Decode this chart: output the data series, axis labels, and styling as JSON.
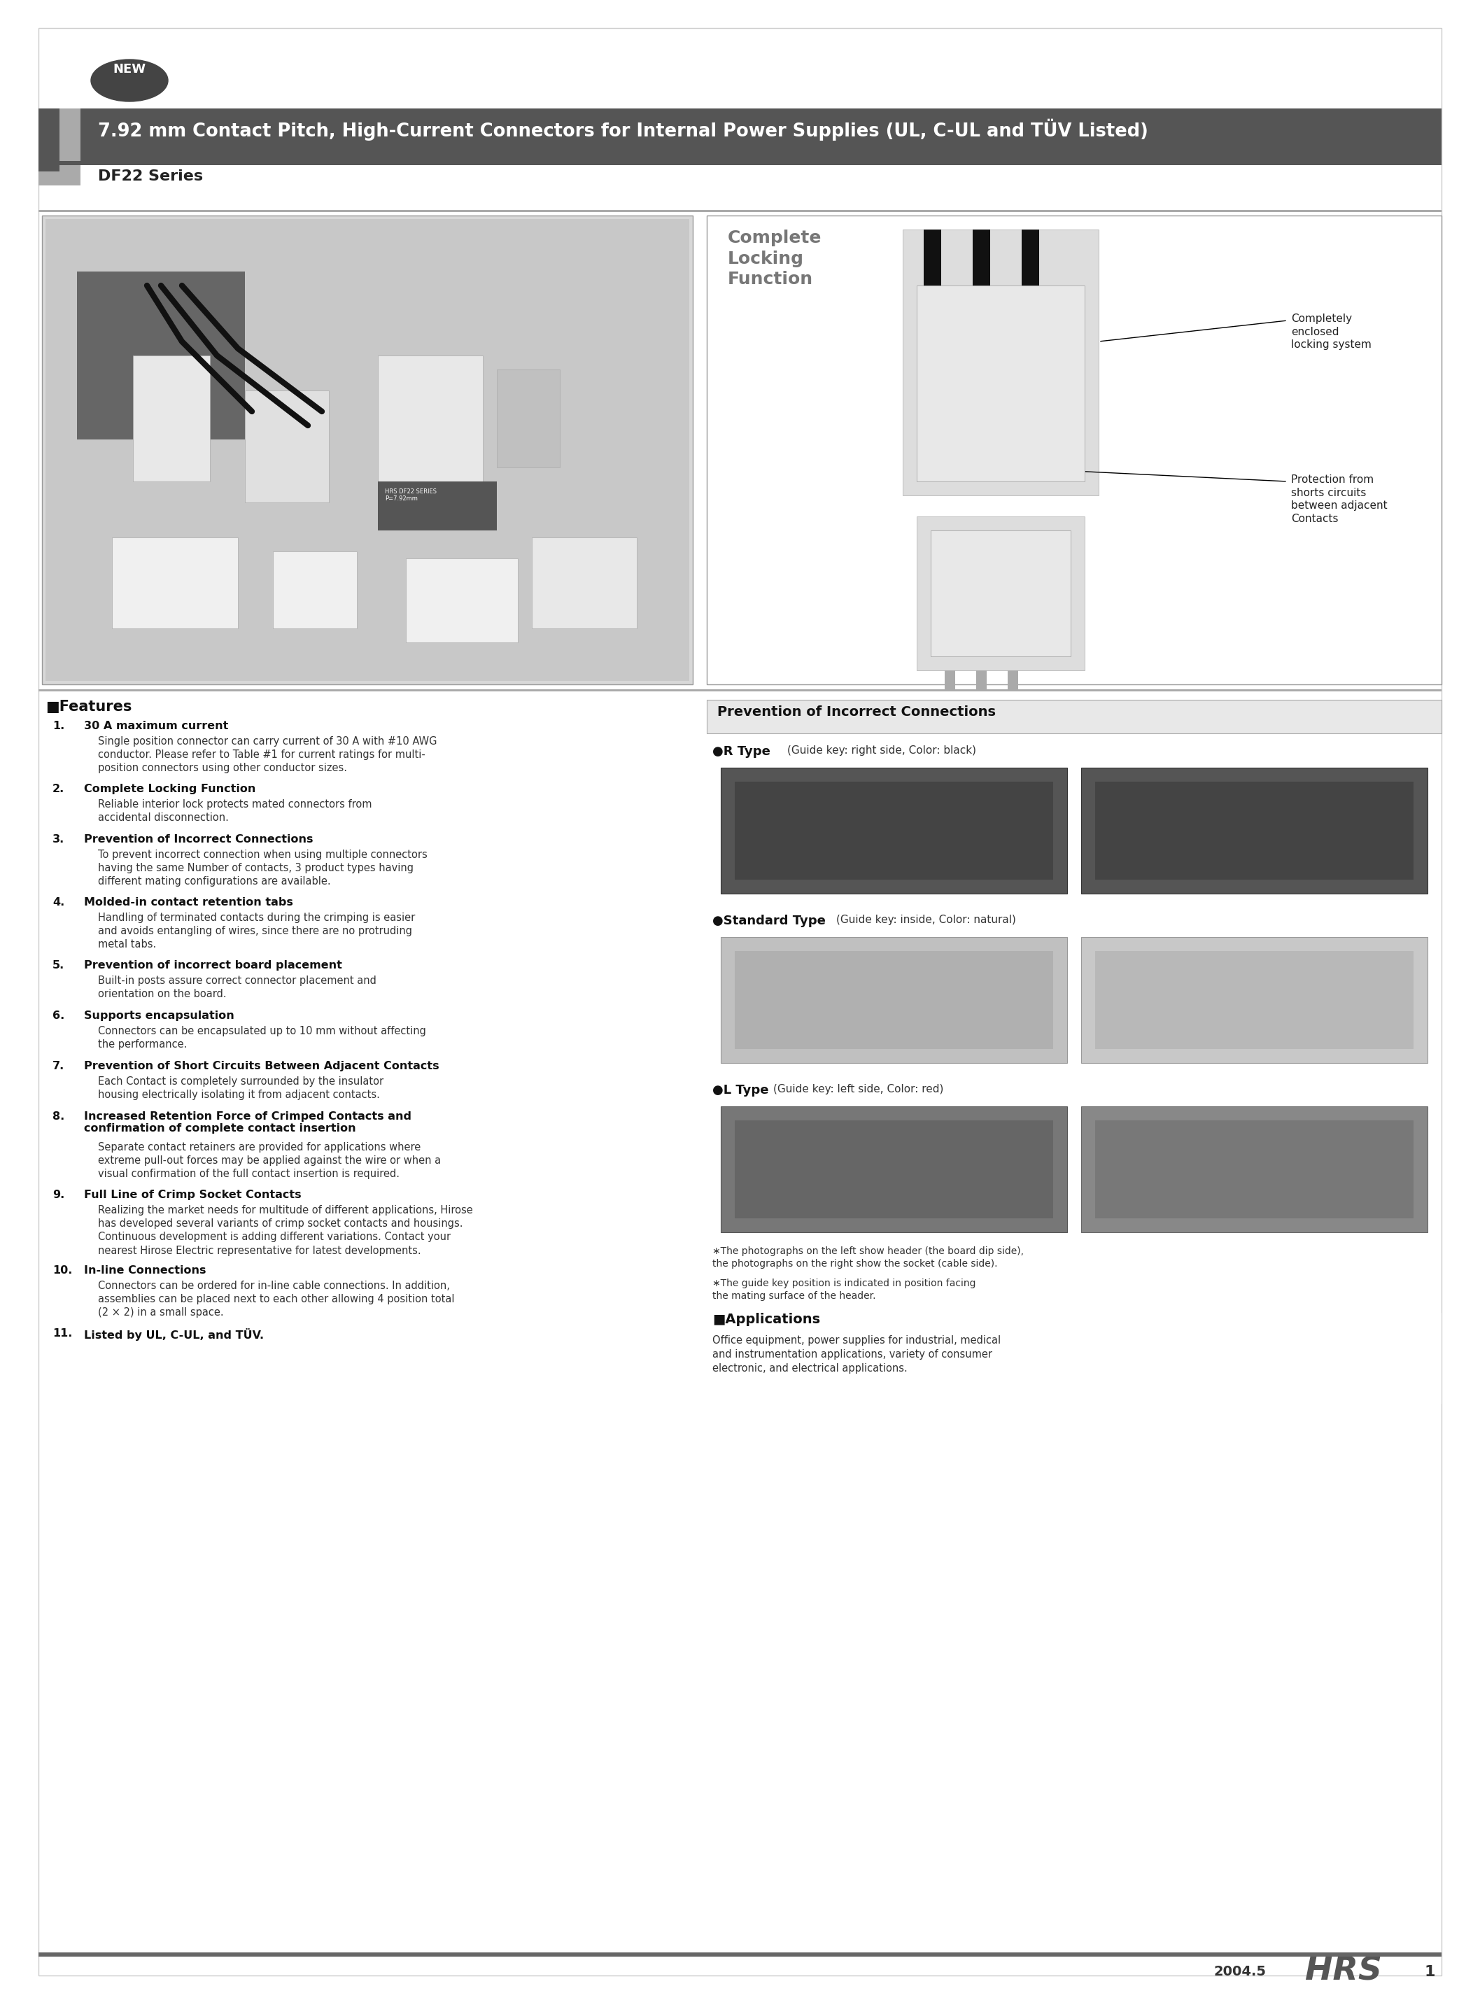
{
  "page_bg": "#ffffff",
  "title_text": "7.92 mm Contact Pitch, High-Current Connectors for Internal Power Supplies (UL, C-UL and TÜV Listed)",
  "series_text": "DF22 Series",
  "section_left_title": "■Features",
  "features": [
    {
      "num": "1.",
      "title": "30 A maximum current",
      "body": "Single position connector can carry current of 30 A with #10 AWG\nconductor. Please refer to Table #1 for current ratings for multi-\nposition connectors using other conductor sizes."
    },
    {
      "num": "2.",
      "title": "Complete Locking Function",
      "body": "Reliable interior lock protects mated connectors from\naccidental disconnection."
    },
    {
      "num": "3.",
      "title": "Prevention of Incorrect Connections",
      "body": "To prevent incorrect connection when using multiple connectors\nhaving the same Number of contacts, 3 product types having\ndifferent mating configurations are available."
    },
    {
      "num": "4.",
      "title": "Molded-in contact retention tabs",
      "body": "Handling of terminated contacts during the crimping is easier\nand avoids entangling of wires, since there are no protruding\nmetal tabs."
    },
    {
      "num": "5.",
      "title": "Prevention of incorrect board placement",
      "body": "Built-in posts assure correct connector placement and\norientation on the board."
    },
    {
      "num": "6.",
      "title": "Supports encapsulation",
      "body": "Connectors can be encapsulated up to 10 mm without affecting\nthe performance."
    },
    {
      "num": "7.",
      "title": "Prevention of Short Circuits Between Adjacent Contacts",
      "body": "Each Contact is completely surrounded by the insulator\nhousing electrically isolating it from adjacent contacts."
    },
    {
      "num": "8.",
      "title": "Increased Retention Force of Crimped Contacts and\nconfirmation of complete contact insertion",
      "body": "Separate contact retainers are provided for applications where\nextreme pull-out forces may be applied against the wire or when a\nvisual confirmation of the full contact insertion is required."
    },
    {
      "num": "9.",
      "title": "Full Line of Crimp Socket Contacts",
      "body": "Realizing the market needs for multitude of different applications, Hirose\nhas developed several variants of crimp socket contacts and housings.\nContinuous development is adding different variations. Contact your\nnearest Hirose Electric representative for latest developments."
    },
    {
      "num": "10.",
      "title": "In-line Connections",
      "body": "Connectors can be ordered for in-line cable connections. In addition,\nassemblies can be placed next to each other allowing 4 position total\n(2 × 2) in a small space."
    },
    {
      "num": "11.",
      "title": "Listed by UL, C-UL, and TÜV.",
      "body": ""
    }
  ],
  "right_section_title": "Prevention of Incorrect Connections",
  "r_type_label": "●R Type",
  "r_type_desc": "(Guide key: right side, Color: black)",
  "standard_type_label": "●Standard Type",
  "standard_type_desc": "(Guide key: inside, Color: natural)",
  "l_type_label": "●L Type",
  "l_type_desc": "(Guide key: left side, Color: red)",
  "footnote1": "∗The photographs on the left show header (the board dip side),\nthe photographs on the right show the socket (cable side).",
  "footnote2": "∗The guide key position is indicated in position facing\nthe mating surface of the header.",
  "apps_title": "■Applications",
  "apps_body": "Office equipment, power supplies for industrial, medical\nand instrumentation applications, variety of consumer\nelectronic, and electrical applications.",
  "complete_locking_title": "Complete\nLocking\nFunction",
  "locking_ann1": "Completely\nenclosed\nlocking system",
  "locking_ann2": "Protection from\nshorts circuits\nbetween adjacent\nContacts",
  "footer_text": "2004.5",
  "footer_page": "1"
}
